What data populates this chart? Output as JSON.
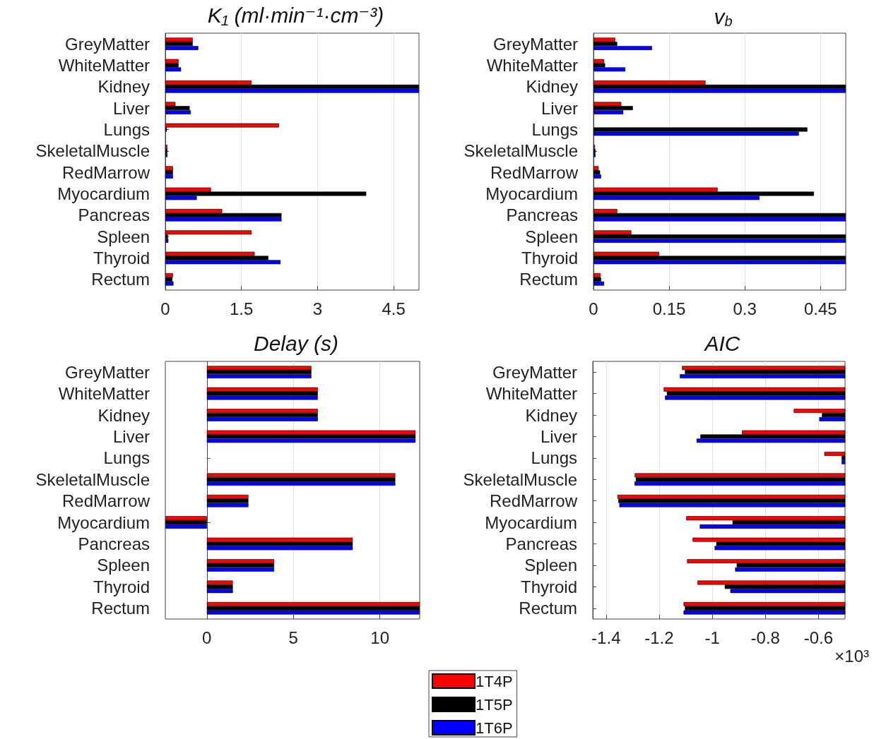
{
  "chart_data": [
    {
      "type": "bar",
      "orientation": "horizontal",
      "title": "K₁ (ml·min⁻¹·cm⁻³)",
      "categories": [
        "GreyMatter",
        "WhiteMatter",
        "Kidney",
        "Liver",
        "Lungs",
        "SkeletalMuscle",
        "RedMarrow",
        "Myocardium",
        "Pancreas",
        "Spleen",
        "Thyroid",
        "Rectum"
      ],
      "series": [
        {
          "name": "1T4P",
          "color": "#ff0000",
          "values": [
            0.54,
            0.26,
            1.7,
            0.2,
            2.24,
            0.04,
            0.15,
            0.9,
            1.12,
            1.7,
            1.76,
            0.15
          ]
        },
        {
          "name": "1T5P",
          "color": "#000000",
          "values": [
            0.54,
            0.26,
            5,
            0.48,
            0.03,
            0.04,
            0.15,
            3.96,
            2.29,
            0.05,
            2.03,
            0.14
          ]
        },
        {
          "name": "1T6P",
          "color": "#0000ff",
          "values": [
            0.65,
            0.31,
            5,
            0.5,
            0,
            0.04,
            0.15,
            0.62,
            2.29,
            0.06,
            2.27,
            0.16
          ]
        }
      ],
      "xlim": [
        0,
        5
      ],
      "xticks": [
        0,
        1.5,
        3,
        4.5
      ],
      "grid": "x",
      "legend": "bottom"
    },
    {
      "type": "bar",
      "orientation": "horizontal",
      "title": "v$_{b}$",
      "categories": [
        "GreyMatter",
        "WhiteMatter",
        "Kidney",
        "Liver",
        "Lungs",
        "SkeletalMuscle",
        "RedMarrow",
        "Myocardium",
        "Pancreas",
        "Spleen",
        "Thyroid",
        "Rectum"
      ],
      "series": [
        {
          "name": "1T4P",
          "color": "#ff0000",
          "values": [
            0.043,
            0.021,
            0.222,
            0.055,
            0,
            0.003,
            0.01,
            0.246,
            0.047,
            0.075,
            0.13,
            0.014
          ]
        },
        {
          "name": "1T5P",
          "color": "#000000",
          "values": [
            0.047,
            0.023,
            0.5,
            0.078,
            0.424,
            0.004,
            0.013,
            0.437,
            0.5,
            0.5,
            0.5,
            0.015
          ]
        },
        {
          "name": "1T6P",
          "color": "#0000ff",
          "values": [
            0.116,
            0.063,
            0.5,
            0.059,
            0.407,
            0.004,
            0.015,
            0.329,
            0.5,
            0.5,
            0.5,
            0.021
          ]
        }
      ],
      "xlim": [
        0,
        0.5
      ],
      "xticks": [
        0,
        0.15,
        0.3,
        0.45
      ],
      "grid": "x",
      "legend": "bottom"
    },
    {
      "type": "bar",
      "orientation": "horizontal",
      "title": "Delay (s)",
      "categories": [
        "GreyMatter",
        "WhiteMatter",
        "Kidney",
        "Liver",
        "Lungs",
        "SkeletalMuscle",
        "RedMarrow",
        "Myocardium",
        "Pancreas",
        "Spleen",
        "Thyroid",
        "Rectum"
      ],
      "series": [
        {
          "name": "1T4P",
          "color": "#ff0000",
          "values": [
            6.04,
            6.41,
            6.41,
            12.06,
            0,
            10.89,
            2.4,
            -2.4,
            8.43,
            3.89,
            1.5,
            12.3
          ]
        },
        {
          "name": "1T5P",
          "color": "#000000",
          "values": [
            6.04,
            6.41,
            6.41,
            12.06,
            0,
            10.89,
            2.4,
            -2.4,
            8.43,
            3.89,
            1.5,
            12.3
          ]
        },
        {
          "name": "1T6P",
          "color": "#0000ff",
          "values": [
            6.04,
            6.41,
            6.41,
            12.06,
            0,
            10.89,
            2.4,
            -2.4,
            8.43,
            3.89,
            1.5,
            12.3
          ]
        }
      ],
      "xlim": [
        -2.4,
        12.3
      ],
      "xticks": [
        0,
        5,
        10
      ],
      "grid": "x",
      "legend": "bottom"
    },
    {
      "type": "bar",
      "orientation": "horizontal",
      "title": "AIC",
      "categories": [
        "GreyMatter",
        "WhiteMatter",
        "Kidney",
        "Liver",
        "Lungs",
        "SkeletalMuscle",
        "RedMarrow",
        "Myocardium",
        "Pancreas",
        "Spleen",
        "Thyroid",
        "Rectum"
      ],
      "series": [
        {
          "name": "1T4P",
          "color": "#ff0000",
          "values": [
            -1.114,
            -1.183,
            -0.693,
            -0.888,
            -0.578,
            -1.292,
            -1.357,
            -1.098,
            -1.074,
            -1.095,
            -1.056,
            -1.108
          ]
        },
        {
          "name": "1T5P",
          "color": "#000000",
          "values": [
            -1.103,
            -1.171,
            -0.587,
            -1.045,
            -0.513,
            -1.288,
            -1.354,
            -0.924,
            -0.985,
            -0.908,
            -0.953,
            -1.103
          ]
        },
        {
          "name": "1T6P",
          "color": "#0000ff",
          "values": [
            -1.122,
            -1.178,
            -0.597,
            -1.059,
            -0.513,
            -1.293,
            -1.35,
            -1.047,
            -0.991,
            -0.914,
            -0.932,
            -1.108
          ]
        }
      ],
      "xlim": [
        -1.45,
        -0.5
      ],
      "xticks": [
        -1.4,
        -1.2,
        -1,
        -0.8,
        -0.6
      ],
      "grid": "x",
      "legend": "bottom",
      "annotations": [
        "×10³"
      ]
    }
  ]
}
